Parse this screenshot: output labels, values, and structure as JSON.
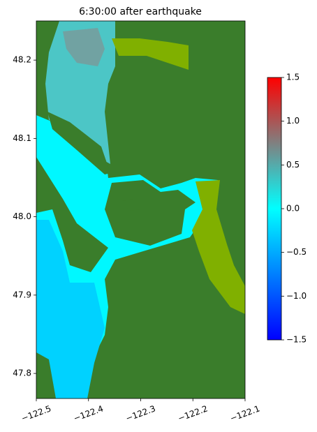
{
  "chart_data": {
    "type": "heatmap",
    "title": "6:30:00 after earthquake",
    "xlim": [
      -122.5,
      -122.1
    ],
    "xticks": [
      {
        "value": -122.5,
        "label": "−122.5"
      },
      {
        "value": -122.4,
        "label": "−122.4"
      },
      {
        "value": -122.3,
        "label": "−122.3"
      },
      {
        "value": -122.2,
        "label": "−122.2"
      },
      {
        "value": -122.1,
        "label": "−122.1"
      }
    ],
    "ylim": [
      47.768,
      48.25
    ],
    "yticks": [
      47.8,
      47.9,
      {
        "value": 48.0,
        "label": "48.0"
      },
      48.1,
      48.2
    ],
    "colorbar": {
      "lim": [
        -1.5,
        1.5
      ],
      "ticks": [
        {
          "value": -1.5,
          "label": "−1.5"
        },
        {
          "value": -1.0,
          "label": "−1.0"
        },
        {
          "value": -0.5,
          "label": "−0.5"
        },
        {
          "value": 0,
          "label": "0.0"
        },
        0.5,
        {
          "value": 1.0,
          "label": "1.0"
        },
        1.5
      ]
    }
  }
}
